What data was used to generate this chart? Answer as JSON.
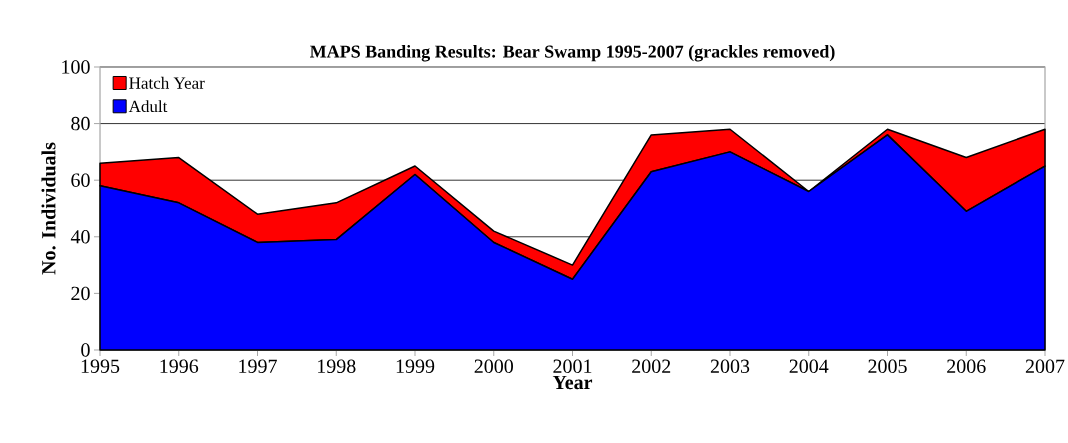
{
  "chart_data": {
    "type": "area",
    "title": "MAPS Banding Results: Bear Swamp 1995-2007 (grackles removed)",
    "xlabel": "Year",
    "ylabel": "No. Individuals",
    "categories": [
      "1995",
      "1996",
      "1997",
      "1998",
      "1999",
      "2000",
      "2001",
      "2002",
      "2003",
      "2004",
      "2005",
      "2006",
      "2007"
    ],
    "stacked": true,
    "ylim": [
      0,
      100
    ],
    "yticks": [
      0,
      20,
      40,
      60,
      80,
      100
    ],
    "grid": "y",
    "legend": "top left",
    "series": [
      {
        "name": "Adult",
        "color": "#0000ff",
        "values": [
          58,
          52,
          38,
          39,
          62,
          38,
          25,
          63,
          70,
          56,
          76,
          49,
          65
        ]
      },
      {
        "name": "Hatch Year",
        "color": "#ff0000",
        "values": [
          8,
          16,
          10,
          13,
          3,
          4,
          5,
          13,
          8,
          0,
          2,
          19,
          13
        ]
      }
    ]
  }
}
